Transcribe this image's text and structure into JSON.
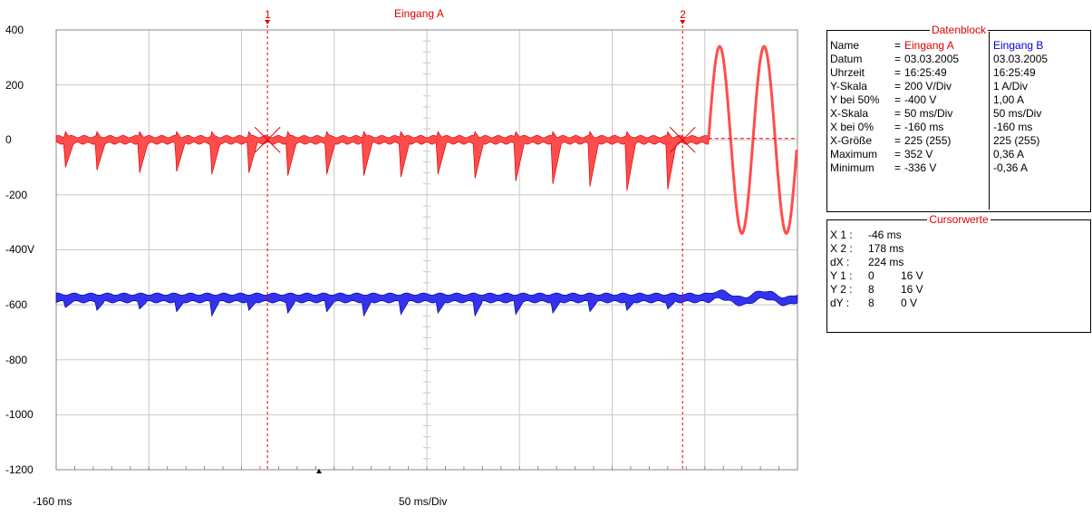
{
  "chart_data": {
    "type": "line",
    "title": "Eingang A",
    "xlabel_left": "-160 ms",
    "xlabel_center": "50 ms/Div",
    "y_ticks": [
      "400",
      "200",
      "0",
      "-200",
      "-400V",
      "-600",
      "-800",
      "-1000",
      "-1200"
    ],
    "ylim": [
      -1200,
      400
    ],
    "xlim_ms": [
      -160,
      240
    ],
    "grid": true,
    "cursors": [
      {
        "label": "1",
        "x_ms": -46
      },
      {
        "label": "2",
        "x_ms": 178
      }
    ],
    "series": [
      {
        "name": "Eingang A",
        "color": "#ff4d4d",
        "pulse_times_ms": [
          -155,
          -138,
          -115,
          -95,
          -76,
          -56,
          -35,
          -14,
          6,
          26,
          46,
          66,
          88,
          108,
          128,
          148,
          170
        ],
        "pulse_min_values": [
          -100,
          -110,
          -120,
          -115,
          -125,
          -120,
          -130,
          -125,
          -130,
          -135,
          -125,
          -140,
          -150,
          -160,
          -170,
          -185,
          -180
        ],
        "sine_region_ms": [
          192,
          240
        ],
        "sine_amplitude": 340,
        "sine_period_ms": 24
      },
      {
        "name": "Eingang B",
        "color": "#3333ee",
        "baseline": -575,
        "spike_min_values": [
          -610,
          -620,
          -615,
          -625,
          -640,
          -620,
          -630,
          -625,
          -640,
          -635,
          -630,
          -640,
          -635,
          -630,
          -625,
          -620,
          -615
        ]
      }
    ]
  },
  "datenblock": {
    "title": "Datenblock",
    "rows": [
      {
        "label": "Name",
        "eq": "=",
        "a": "Eingang A",
        "b": "Eingang B"
      },
      {
        "label": "Datum",
        "eq": "=",
        "a": "03.03.2005",
        "b": "03.03.2005"
      },
      {
        "label": "Uhrzeit",
        "eq": "=",
        "a": "16:25:49",
        "b": "16:25:49"
      },
      {
        "label": "Y-Skala",
        "eq": "=",
        "a": "200 V/Div",
        "b": "1    A/Div"
      },
      {
        "label": "Y bei 50%",
        "eq": "=",
        "a": "-400 V",
        "b": "1,00 A"
      },
      {
        "label": "X-Skala",
        "eq": "=",
        "a": "50 ms/Div",
        "b": "50    ms/Div"
      },
      {
        "label": "X bei 0%",
        "eq": "=",
        "a": "-160 ms",
        "b": "-160    ms"
      },
      {
        "label": "X-Größe",
        "eq": "=",
        "a": "225 (255)",
        "b": "225 (255)"
      },
      {
        "label": "Maximum",
        "eq": "=",
        "a": "352 V",
        "b": "0,36 A"
      },
      {
        "label": "Minimum",
        "eq": "=",
        "a": "-336 V",
        "b": "-0,36 A"
      }
    ]
  },
  "cursorwerte": {
    "title": "Cursorwerte",
    "rows": [
      {
        "label": "X 1 :",
        "v1": "-46 ms",
        "v2": ""
      },
      {
        "label": "X 2 :",
        "v1": "178 ms",
        "v2": ""
      },
      {
        "label": "dX :",
        "v1": "224 ms",
        "v2": ""
      },
      {
        "label": "Y 1 :",
        "v1": "0",
        "v2": "16 V"
      },
      {
        "label": "Y 2 :",
        "v1": "8",
        "v2": "16 V"
      },
      {
        "label": "dY :",
        "v1": "8",
        "v2": "0 V"
      }
    ]
  }
}
